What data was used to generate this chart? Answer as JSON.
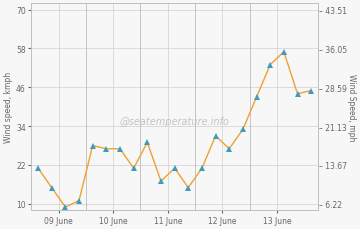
{
  "y_kmph": [
    21,
    15,
    9,
    11,
    28,
    27,
    27,
    21,
    29,
    17,
    21,
    15,
    21,
    31,
    27,
    33,
    43,
    53,
    57,
    44,
    45
  ],
  "xtick_positions": [
    1.5,
    5.5,
    9.5,
    13.5,
    17.5
  ],
  "xtick_labels": [
    "09 June",
    "10 June",
    "11 June",
    "12 June",
    "13 June"
  ],
  "yticks_left": [
    10,
    22,
    34,
    46,
    58,
    70
  ],
  "yticks_right_labels": [
    "6.22",
    "13.67",
    "21.13",
    "28.59",
    "36.05",
    "43.51"
  ],
  "yticks_right_vals": [
    6.22,
    13.67,
    21.13,
    28.59,
    36.05,
    43.51
  ],
  "ylabel_left": "Wind speed, kmph",
  "ylabel_right": "Wind Speed, mph",
  "watermark": "@seatemperature.info",
  "line_color": "#f0a030",
  "marker_color": "#3a9dbf",
  "background_color": "#f7f7f7",
  "grid_color": "#d0d0d0",
  "ylim": [
    8,
    72
  ],
  "vline_positions": [
    3.5,
    7.5,
    11.5,
    15.5
  ],
  "n_points": 21
}
